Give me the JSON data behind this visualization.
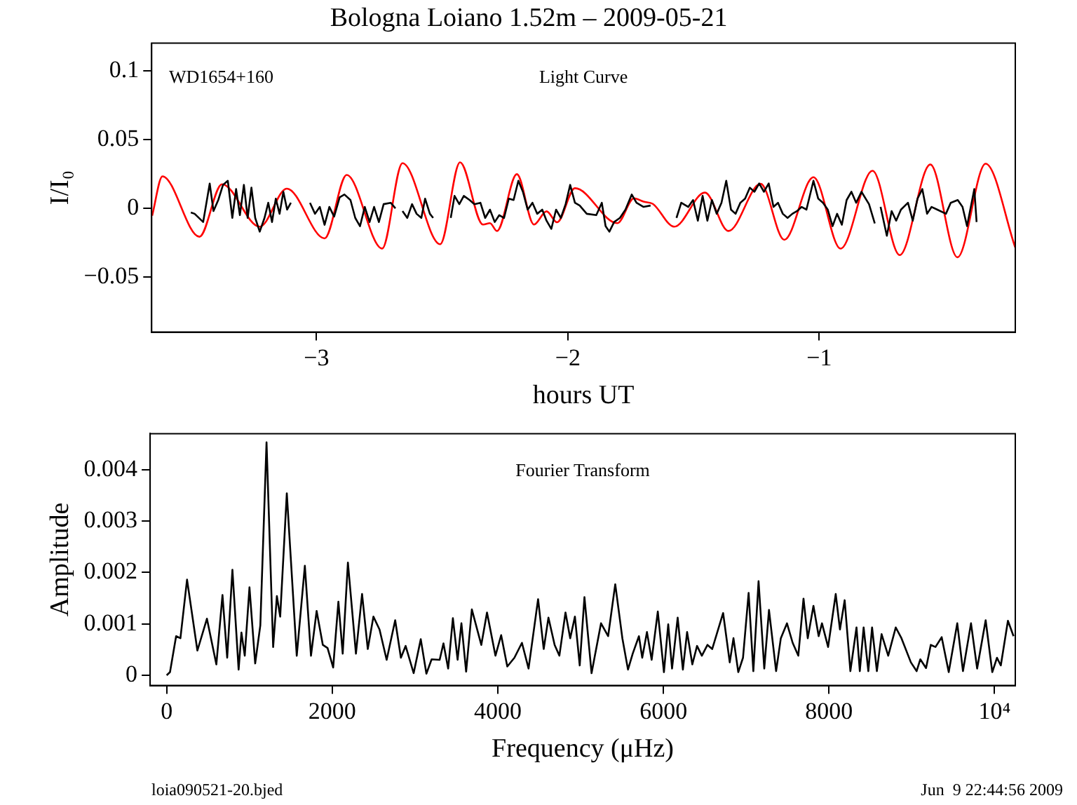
{
  "chart_data": [
    {
      "type": "line",
      "title": "Bologna Loiano 1.52m – 2009-05-21",
      "xlabel": "hours UT",
      "ylabel": "I/I₀",
      "annotations": [
        "WD1654+160",
        "Light Curve"
      ],
      "xlim": [
        -3.656,
        -0.22
      ],
      "ylim": [
        -0.09,
        0.12
      ],
      "xticks": [
        {
          "value": -3,
          "label": "−3"
        },
        {
          "value": -2,
          "label": "−2"
        },
        {
          "value": -1,
          "label": "−1"
        }
      ],
      "yticks": [
        {
          "value": -0.05,
          "label": "−0.05"
        },
        0,
        0.05,
        0.1
      ],
      "grid": false,
      "legend": false,
      "marker": "none",
      "series": [
        {
          "color": "#000000",
          "x": [
            -3.5,
            -3.485,
            -3.451,
            -3.425,
            -3.41,
            -3.391,
            -3.372,
            -3.353,
            -3.335,
            -3.32,
            -3.305,
            -3.289,
            -3.274,
            -3.259,
            -3.244,
            -3.226,
            -3.207,
            -3.192,
            -3.177,
            -3.162,
            -3.147,
            -3.132,
            -3.117,
            -3.102,
            -3.08,
            -3.026,
            -3.006,
            -2.987,
            -2.968,
            -2.949,
            -2.93,
            -2.908,
            -2.889,
            -2.865,
            -2.846,
            -2.827,
            -2.808,
            -2.789,
            -2.771,
            -2.752,
            -2.733,
            -2.705,
            -2.686,
            -2.678,
            -2.658,
            -2.639,
            -2.62,
            -2.602,
            -2.583,
            -2.568,
            -2.549,
            -2.536,
            -2.5,
            -2.466,
            -2.451,
            -2.432,
            -2.414,
            -2.391,
            -2.372,
            -2.348,
            -2.329,
            -2.31,
            -2.291,
            -2.273,
            -2.254,
            -2.235,
            -2.216,
            -2.197,
            -2.179,
            -2.16,
            -2.141,
            -2.122,
            -2.102,
            -2.085,
            -2.066,
            -2.047,
            -2.028,
            -2.009,
            -1.991,
            -1.972,
            -1.953,
            -1.925,
            -1.887,
            -1.865,
            -1.85,
            -1.835,
            -1.816,
            -1.793,
            -1.771,
            -1.746,
            -1.727,
            -1.699,
            -1.671,
            -1.64,
            -1.568,
            -1.549,
            -1.521,
            -1.502,
            -1.483,
            -1.464,
            -1.445,
            -1.427,
            -1.408,
            -1.389,
            -1.37,
            -1.351,
            -1.333,
            -1.314,
            -1.295,
            -1.276,
            -1.258,
            -1.239,
            -1.22,
            -1.201,
            -1.182,
            -1.164,
            -1.145,
            -1.126,
            -1.107,
            -1.088,
            -1.07,
            -1.051,
            -1.023,
            -1.004,
            -0.985,
            -0.966,
            -0.947,
            -0.929,
            -0.91,
            -0.891,
            -0.872,
            -0.853,
            -0.832,
            -0.802,
            -0.779,
            -0.765,
            -0.756,
            -0.731,
            -0.712,
            -0.694,
            -0.675,
            -0.647,
            -0.628,
            -0.609,
            -0.59,
            -0.571,
            -0.553,
            -0.53,
            -0.496,
            -0.477,
            -0.449,
            -0.43,
            -0.412,
            -0.383,
            -0.374
          ],
          "values": [
            -0.003,
            -0.004,
            -0.01,
            0.018,
            -0.002,
            0.006,
            0.017,
            0.02,
            -0.007,
            0.014,
            -0.005,
            0.017,
            -0.007,
            0.015,
            -0.007,
            -0.017,
            -0.007,
            0.004,
            -0.01,
            0.007,
            -0.004,
            0.012,
            -0.001,
            0.004,
            null,
            0.004,
            -0.004,
            0.001,
            -0.012,
            0.001,
            -0.006,
            0.008,
            0.01,
            0.006,
            -0.007,
            -0.013,
            0.001,
            -0.01,
            0.001,
            -0.01,
            0.003,
            0.004,
            0.0,
            null,
            -0.002,
            -0.007,
            0.003,
            -0.004,
            -0.007,
            0.007,
            -0.004,
            -0.007,
            null,
            -0.007,
            0.009,
            0.003,
            0.009,
            0.006,
            0.003,
            0.004,
            -0.007,
            -0.001,
            -0.01,
            -0.005,
            -0.007,
            0.007,
            0.006,
            0.02,
            0.012,
            -0.001,
            0.004,
            -0.004,
            -0.001,
            -0.009,
            -0.015,
            -0.001,
            -0.007,
            0.003,
            0.017,
            0.004,
            0.002,
            -0.004,
            -0.005,
            0.004,
            -0.013,
            -0.017,
            -0.01,
            -0.007,
            -0.001,
            0.01,
            0.004,
            0.001,
            0.002,
            null,
            -0.007,
            0.004,
            0.001,
            0.006,
            -0.009,
            0.009,
            -0.009,
            0.006,
            -0.004,
            0.004,
            0.02,
            -0.001,
            -0.004,
            0.004,
            0.007,
            0.015,
            0.012,
            0.018,
            0.012,
            0.018,
            0.001,
            0.004,
            -0.004,
            -0.007,
            -0.004,
            -0.002,
            0.001,
            -0.001,
            0.02,
            0.007,
            0.004,
            -0.001,
            -0.013,
            -0.004,
            -0.012,
            0.006,
            0.012,
            0.004,
            0.012,
            0.003,
            -0.011,
            null,
            0.001,
            -0.02,
            -0.002,
            -0.009,
            -0.001,
            0.004,
            -0.009,
            0.007,
            0.014,
            -0.004,
            0.001,
            -0.001,
            -0.004,
            0.004,
            0.006,
            0.001,
            -0.013,
            0.014,
            -0.01
          ]
        },
        {
          "color": "#ff0000",
          "x": [
            -3.654,
            -3.613,
            -3.466,
            -3.376,
            -3.226,
            -3.118,
            -2.968,
            -2.88,
            -2.739,
            -2.658,
            -2.508,
            -2.429,
            -2.338,
            -2.31,
            -2.282,
            -2.203,
            -2.135,
            -2.085,
            -2.043,
            -1.972,
            -1.803,
            -1.737,
            -1.699,
            -1.662,
            -1.577,
            -1.455,
            -1.361,
            -1.233,
            -1.139,
            -1.023,
            -0.915,
            -0.788,
            -0.68,
            -0.558,
            -0.45,
            -0.338,
            -0.22
          ],
          "values": [
            -0.0054,
            0.0232,
            -0.0207,
            0.0175,
            -0.0134,
            0.0143,
            -0.0219,
            0.0242,
            -0.0293,
            0.0328,
            -0.0261,
            0.0334,
            -0.0118,
            -0.0108,
            -0.0165,
            0.0248,
            -0.0118,
            -0.0022,
            -0.0102,
            0.0146,
            -0.0108,
            0.0073,
            0.0048,
            0.0032,
            -0.0134,
            0.0114,
            -0.0165,
            0.0178,
            -0.0229,
            0.0226,
            -0.0293,
            0.0273,
            -0.034,
            0.0318,
            -0.0356,
            0.0324,
            -0.0286
          ]
        }
      ]
    },
    {
      "type": "line",
      "xlabel": "Frequency (μHz)",
      "ylabel": "Amplitude",
      "annotations": [
        "Fourier Transform",
        "loia090521-20.bjed",
        "Jun  9 22:44:56 2009"
      ],
      "xlim": [
        -200,
        10250
      ],
      "ylim": [
        -0.0002,
        0.0047
      ],
      "xticks": [
        0,
        2000,
        4000,
        6000,
        8000,
        {
          "value": 10000,
          "label": "10⁴"
        }
      ],
      "yticks": [
        0,
        0.001,
        0.002,
        0.003,
        0.004
      ],
      "grid": false,
      "legend": false,
      "marker": "none",
      "series": [
        {
          "color": "#000000",
          "x": [
            0,
            40,
            114,
            166,
            246,
            371,
            486,
            600,
            674,
            731,
            794,
            869,
            903,
            943,
            1000,
            1069,
            1131,
            1206,
            1286,
            1331,
            1371,
            1451,
            1571,
            1669,
            1743,
            1811,
            1886,
            1943,
            2011,
            2074,
            2126,
            2189,
            2286,
            2360,
            2429,
            2497,
            2571,
            2657,
            2760,
            2829,
            2886,
            2983,
            3069,
            3137,
            3200,
            3297,
            3343,
            3400,
            3457,
            3514,
            3560,
            3617,
            3686,
            3800,
            3869,
            3971,
            4040,
            4114,
            4200,
            4291,
            4371,
            4486,
            4554,
            4611,
            4686,
            4743,
            4817,
            4874,
            4931,
            4989,
            5046,
            5132,
            5246,
            5332,
            5418,
            5504,
            5572,
            5629,
            5704,
            5744,
            5801,
            5858,
            5932,
            6006,
            6058,
            6104,
            6172,
            6235,
            6286,
            6349,
            6406,
            6464,
            6532,
            6589,
            6721,
            6801,
            6846,
            6904,
            6961,
            7029,
            7086,
            7149,
            7218,
            7275,
            7361,
            7418,
            7492,
            7561,
            7629,
            7692,
            7743,
            7812,
            7875,
            7915,
            7989,
            8081,
            8132,
            8189,
            8258,
            8332,
            8372,
            8418,
            8475,
            8520,
            8578,
            8635,
            8715,
            8806,
            8875,
            8989,
            9058,
            9103,
            9172,
            9229,
            9286,
            9361,
            9446,
            9549,
            9618,
            9715,
            9789,
            9892,
            9972,
            10029,
            10075,
            10161,
            10229
          ],
          "values": [
            0,
            6e-05,
            0.00076,
            0.00072,
            0.00186,
            0.00048,
            0.0011,
            0.00021,
            0.00156,
            0.00034,
            0.00205,
            0.00011,
            0.00083,
            0.00038,
            0.00171,
            0.00023,
            0.00097,
            0.00453,
            0.00055,
            0.00154,
            0.00114,
            0.00354,
            0.00038,
            0.00213,
            0.00038,
            0.00125,
            0.00059,
            0.00053,
            0.00015,
            0.00143,
            0.00042,
            0.00219,
            0.00042,
            0.00158,
            0.00051,
            0.00114,
            0.00089,
            0.0003,
            0.00107,
            0.00034,
            0.00057,
            4e-05,
            0.0007,
            3e-05,
            0.00031,
            0.0003,
            0.00062,
            0.00013,
            0.00111,
            0.0003,
            0.00101,
            7e-05,
            0.00128,
            0.00059,
            0.00122,
            0.00038,
            0.00078,
            0.00017,
            0.00034,
            0.00063,
            0.00013,
            0.00148,
            0.00051,
            0.00112,
            0.00059,
            0.00038,
            0.00122,
            0.00072,
            0.00114,
            0.00019,
            0.00152,
            4e-05,
            0.00101,
            0.00076,
            0.00177,
            0.00072,
            0.00011,
            0.00042,
            0.00076,
            0.00034,
            0.00084,
            0.0003,
            0.00124,
            6e-05,
            0.00099,
            0.00013,
            0.00112,
            0.00011,
            0.00084,
            0.00021,
            0.00057,
            0.00038,
            0.00059,
            0.00051,
            0.00121,
            0.00025,
            0.00072,
            6e-05,
            0.00034,
            0.0016,
            8e-05,
            0.00183,
            0.00013,
            0.00127,
            8e-05,
            0.00072,
            0.00101,
            0.00063,
            0.00038,
            0.00149,
            0.00072,
            0.00135,
            0.00076,
            0.00101,
            0.00055,
            0.00158,
            0.00089,
            0.00146,
            8e-05,
            0.00093,
            8e-05,
            0.00093,
            8e-05,
            0.00093,
            8e-05,
            0.0008,
            0.00038,
            0.00093,
            0.00072,
            0.00025,
            8e-05,
            0.00031,
            0.00014,
            0.00059,
            0.00055,
            0.00074,
            6e-05,
            0.00101,
            8e-05,
            0.00101,
            0.00013,
            0.00107,
            6e-05,
            0.00034,
            0.00019,
            0.00106,
            0.00076
          ]
        }
      ]
    }
  ]
}
